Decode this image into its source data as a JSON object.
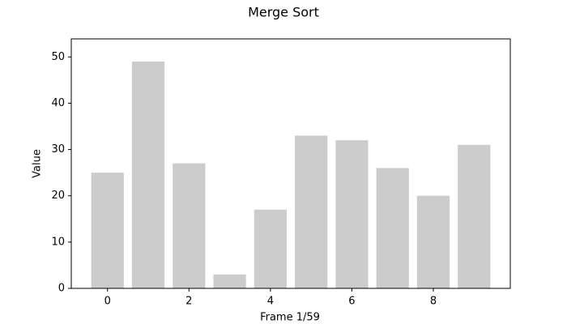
{
  "chart_data": {
    "type": "bar",
    "title": "Merge Sort",
    "x_label": "Frame 1/59",
    "y_label": "Value",
    "x": [
      0,
      1,
      2,
      3,
      4,
      5,
      6,
      7,
      8,
      9
    ],
    "values": [
      25,
      49,
      27,
      3,
      17,
      33,
      32,
      26,
      20,
      31
    ],
    "color": "#cccccc",
    "xlim": [
      -0.89,
      9.89
    ],
    "xticks": [
      0,
      2,
      4,
      6,
      8
    ],
    "ylim": [
      0,
      53.9
    ],
    "yticks": [
      0,
      10,
      20,
      30,
      40,
      50
    ]
  }
}
